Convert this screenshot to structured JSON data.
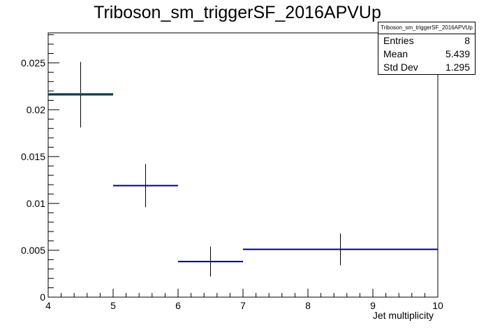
{
  "chart_data": {
    "type": "histogram",
    "title": "Triboson_sm_triggerSF_2016APVUp",
    "xlabel": "Jet multiplicity",
    "ylabel": "",
    "xlim": [
      4,
      10
    ],
    "ylim": [
      0,
      0.0282
    ],
    "x_ticks": [
      "4",
      "5",
      "6",
      "7",
      "8",
      "9",
      "10"
    ],
    "y_ticks": [
      "0",
      "0.005",
      "0.01",
      "0.015",
      "0.02",
      "0.025"
    ],
    "bins": [
      {
        "xlow": 4,
        "xhigh": 5,
        "center": 4.5,
        "value": 0.0216,
        "error": 0.0035,
        "alt_value": 0.0217
      },
      {
        "xlow": 5,
        "xhigh": 6,
        "center": 5.5,
        "value": 0.0119,
        "error": 0.0023
      },
      {
        "xlow": 6,
        "xhigh": 7,
        "center": 6.5,
        "value": 0.0038,
        "error": 0.0016
      },
      {
        "xlow": 7,
        "xhigh": 10,
        "center": 8.5,
        "value": 0.0051,
        "error": 0.0017
      }
    ],
    "series_colors": {
      "histogram": "#00008b",
      "alternate": "#008000",
      "errors": "#000000"
    },
    "grid": false,
    "legend_placement": "top-right"
  },
  "stats_box": {
    "title": "Triboson_sm_triggerSF_2016APVUp",
    "rows": [
      {
        "label": "Entries",
        "value": "8"
      },
      {
        "label": "Mean",
        "value": "5.439"
      },
      {
        "label": "Std Dev",
        "value": "1.295"
      }
    ]
  }
}
